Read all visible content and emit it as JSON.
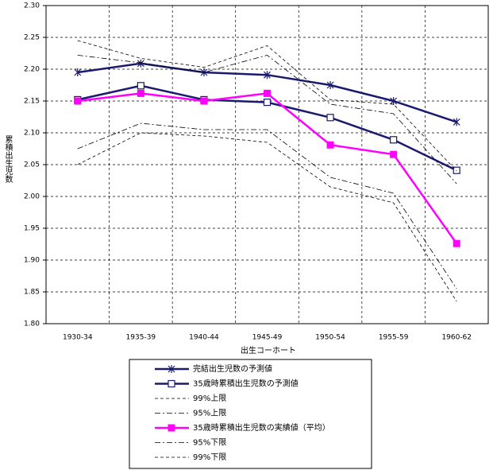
{
  "chart_data": {
    "type": "line",
    "x_label": "出生コーホート",
    "y_label": "累積出生児数",
    "categories": [
      "1930-34",
      "1935-39",
      "1940-44",
      "1945-49",
      "1950-54",
      "1955-59",
      "1960-62"
    ],
    "ylim": [
      1.8,
      2.3
    ],
    "yticks": [
      {
        "value": 1.8,
        "label": "1.80"
      },
      {
        "value": 1.85,
        "label": "1.85"
      },
      {
        "value": 1.9,
        "label": "1.90"
      },
      {
        "value": 1.95,
        "label": "1.95"
      },
      {
        "value": 2.0,
        "label": "2.00"
      },
      {
        "value": 2.05,
        "label": "2.05"
      },
      {
        "value": 2.1,
        "label": "2.10"
      },
      {
        "value": 2.15,
        "label": "2.15"
      },
      {
        "value": 2.2,
        "label": "2.20"
      },
      {
        "value": 2.25,
        "label": "2.25"
      },
      {
        "value": 2.3,
        "label": "2.30"
      }
    ],
    "grid": true,
    "series": [
      {
        "name": "完結出生児数の予測値",
        "color": "#1a1a6e",
        "style": "solid",
        "marker": "asterisk",
        "values": [
          2.195,
          2.209,
          2.195,
          2.191,
          2.175,
          2.15,
          2.117
        ]
      },
      {
        "name": "35歳時累積出生児数の予測値",
        "color": "#1a1a6e",
        "style": "solid",
        "marker": "square-open",
        "values": [
          2.152,
          2.174,
          2.152,
          2.148,
          2.124,
          2.089,
          2.041
        ]
      },
      {
        "name": "99%上限",
        "color": "#000000",
        "style": "dashed",
        "marker": "none",
        "values": [
          2.245,
          2.217,
          2.203,
          2.237,
          2.152,
          2.145,
          2.04
        ]
      },
      {
        "name": "95%上限",
        "color": "#000000",
        "style": "dashdot",
        "marker": "none",
        "values": [
          2.222,
          2.21,
          2.195,
          2.222,
          2.145,
          2.13,
          2.02
        ]
      },
      {
        "name": "35歳時累積出生児数の実績値（平均）",
        "color": "#ff00ff",
        "style": "solid",
        "marker": "square",
        "values": [
          2.15,
          2.162,
          2.15,
          2.162,
          2.081,
          2.066,
          1.926
        ]
      },
      {
        "name": "95%下限",
        "color": "#000000",
        "style": "dashdot",
        "marker": "none",
        "values": [
          2.075,
          2.115,
          2.105,
          2.105,
          2.03,
          2.005,
          1.855
        ]
      },
      {
        "name": "99%下限",
        "color": "#000000",
        "style": "dashed",
        "marker": "none",
        "values": [
          2.05,
          2.1,
          2.095,
          2.085,
          2.015,
          1.99,
          1.835
        ]
      }
    ]
  }
}
